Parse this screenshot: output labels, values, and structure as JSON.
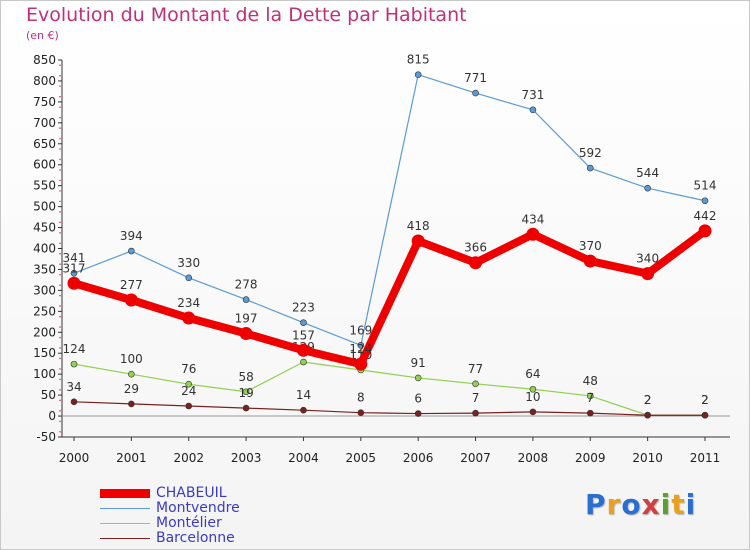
{
  "title": "Evolution du Montant de la Dette par Habitant",
  "unit_label": "(en €)",
  "logo": {
    "text": "Proxiti",
    "colors": [
      "#2a6ed0",
      "#e8a020",
      "#2a6ed0",
      "#d04040",
      "#5aa030",
      "#e8a020",
      "#2a6ed0"
    ]
  },
  "chart_data": {
    "type": "line",
    "x": [
      "2000",
      "2001",
      "2002",
      "2003",
      "2004",
      "2005",
      "2006",
      "2007",
      "2008",
      "2009",
      "2010",
      "2011"
    ],
    "ylim": [
      -50,
      850
    ],
    "yticks": [
      -50,
      0,
      50,
      100,
      150,
      200,
      250,
      300,
      350,
      400,
      450,
      500,
      550,
      600,
      650,
      700,
      750,
      800,
      850
    ],
    "grid": false,
    "legend_position": "bottom-left",
    "series": [
      {
        "name": "Montvendre",
        "color": "#5b9bd5",
        "values": [
          341,
          394,
          330,
          278,
          223,
          169,
          815,
          771,
          731,
          592,
          544,
          514
        ],
        "labels": [
          "341",
          "394",
          "330",
          "278",
          "223",
          "169",
          "815",
          "771",
          "731",
          "592",
          "544",
          "514"
        ]
      },
      {
        "name": "Montélier",
        "color": "#92d050",
        "values": [
          124,
          100,
          76,
          58,
          129,
          110,
          91,
          77,
          64,
          48,
          2,
          2
        ],
        "labels": [
          "124",
          "100",
          "76",
          "58",
          "129",
          "110",
          "91",
          "77",
          "64",
          "48",
          "2",
          "2"
        ]
      },
      {
        "name": "Barcelonne",
        "color": "#7a2020",
        "values": [
          34,
          29,
          24,
          19,
          14,
          8,
          6,
          7,
          10,
          7,
          2,
          2
        ],
        "labels": [
          "34",
          "29",
          "24",
          "19",
          "14",
          "8",
          "6",
          "7",
          "10",
          "7",
          "2",
          "2"
        ]
      },
      {
        "name": "CHABEUIL",
        "color": "#ee0000",
        "values": [
          317,
          277,
          234,
          197,
          157,
          124,
          418,
          366,
          434,
          370,
          340,
          442
        ],
        "labels": [
          "317",
          "277",
          "234",
          "197",
          "157",
          "124",
          "418",
          "366",
          "434",
          "370",
          "340",
          "442"
        ]
      }
    ],
    "legend_order": [
      "CHABEUIL",
      "Montvendre",
      "Montélier",
      "Barcelonne"
    ]
  }
}
